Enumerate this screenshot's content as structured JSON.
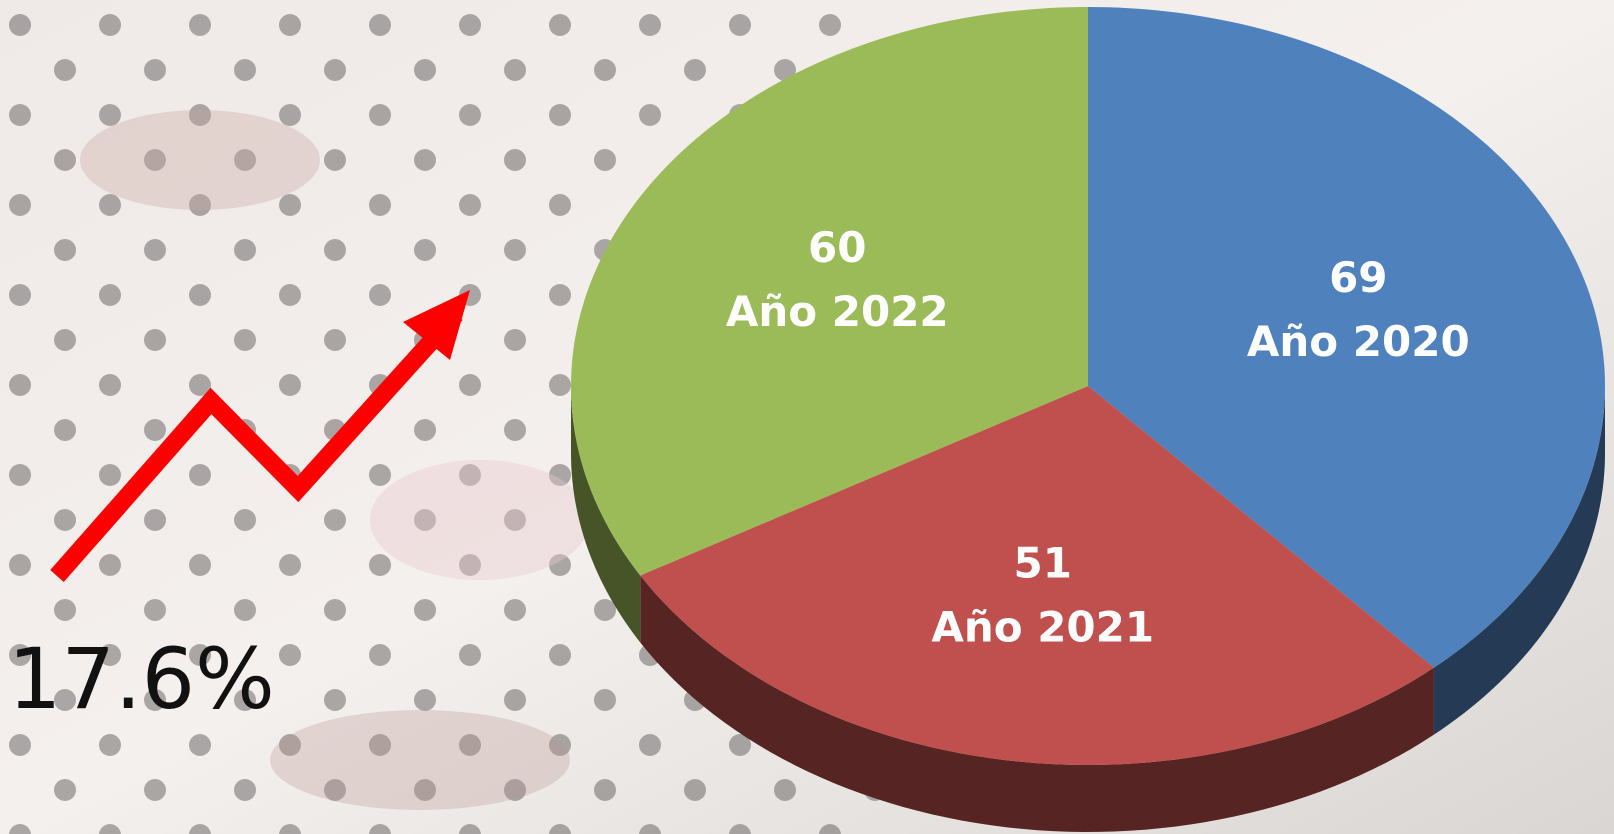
{
  "chart_data": {
    "type": "pie",
    "categories": [
      "Año 2020",
      "Año 2021",
      "Año 2022"
    ],
    "values": [
      69,
      51,
      60
    ],
    "colors": [
      "#4f81bd",
      "#c0504d",
      "#9bbb59"
    ],
    "annotation": "17.6%"
  }
}
